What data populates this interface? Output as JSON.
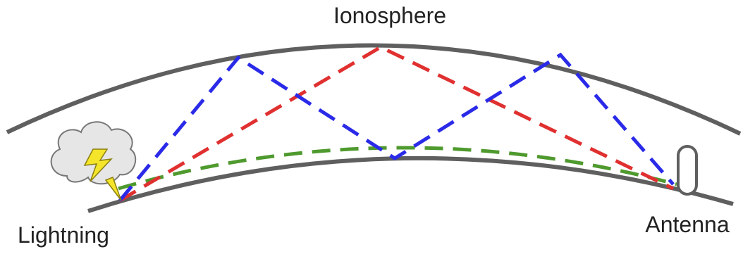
{
  "labels": {
    "ionosphere": "Ionosphere",
    "lightning": "Lightning",
    "antenna": "Antenna"
  }
}
